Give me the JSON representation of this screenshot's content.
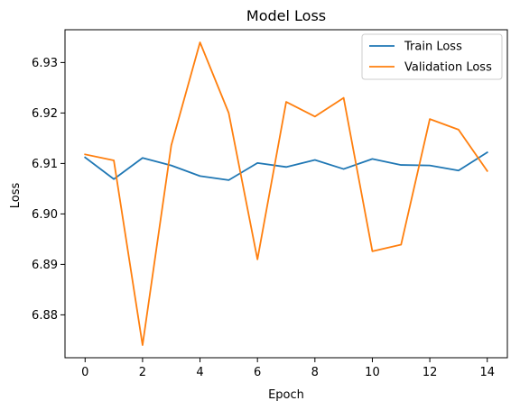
{
  "chart_data": {
    "type": "line",
    "title": "Model Loss",
    "xlabel": "Epoch",
    "ylabel": "Loss",
    "x": [
      0,
      1,
      2,
      3,
      4,
      5,
      6,
      7,
      8,
      9,
      10,
      11,
      12,
      13,
      14
    ],
    "xlim": [
      -0.7,
      14.7
    ],
    "ylim": [
      6.8715,
      6.9365
    ],
    "xticks": [
      0,
      2,
      4,
      6,
      8,
      10,
      12,
      14
    ],
    "yticks": [
      6.88,
      6.89,
      6.9,
      6.91,
      6.92,
      6.93
    ],
    "ytick_labels": [
      "6.88",
      "6.89",
      "6.90",
      "6.91",
      "6.92",
      "6.93"
    ],
    "grid": false,
    "legend_position": "upper-right",
    "series": [
      {
        "name": "Train Loss",
        "color": "#1f77b4",
        "values": [
          6.9112,
          6.9069,
          6.9111,
          6.9096,
          6.9075,
          6.9067,
          6.9101,
          6.9093,
          6.9107,
          6.9089,
          6.9109,
          6.9097,
          6.9096,
          6.9086,
          6.9122
        ]
      },
      {
        "name": "Validation Loss",
        "color": "#ff7f0e",
        "values": [
          6.9118,
          6.9106,
          6.874,
          6.9136,
          6.934,
          6.92,
          6.891,
          6.9222,
          6.9193,
          6.923,
          6.8926,
          6.8939,
          6.9188,
          6.9167,
          6.9085
        ]
      }
    ]
  }
}
